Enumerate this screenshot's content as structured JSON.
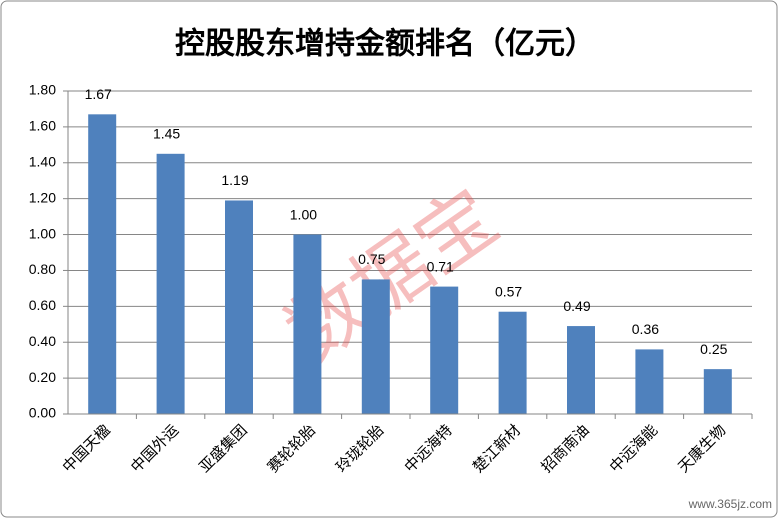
{
  "chart_data": {
    "type": "bar",
    "title": "控股股东增持金额排名（亿元）",
    "categories": [
      "中国天楹",
      "中国外运",
      "亚盛集团",
      "赛轮轮胎",
      "玲珑轮胎",
      "中远海特",
      "楚江新材",
      "招商南油",
      "中远海能",
      "天康生物"
    ],
    "values": [
      1.67,
      1.45,
      1.19,
      1.0,
      0.75,
      0.71,
      0.57,
      0.49,
      0.36,
      0.25
    ],
    "value_labels": [
      "1.67",
      "1.45",
      "1.19",
      "1.00",
      "0.75",
      "0.71",
      "0.57",
      "0.49",
      "0.36",
      "0.25"
    ],
    "color": "#4f81bd",
    "ylim": [
      0,
      1.8
    ],
    "yticks": [
      {
        "value": 0,
        "label": "0.00"
      },
      {
        "value": 0.2,
        "label": "0.20"
      },
      {
        "value": 0.4,
        "label": "0.40"
      },
      {
        "value": 0.6,
        "label": "0.60"
      },
      {
        "value": 0.8,
        "label": "0.80"
      },
      {
        "value": 1.0,
        "label": "1.00"
      },
      {
        "value": 1.2,
        "label": "1.20"
      },
      {
        "value": 1.4,
        "label": "1.40"
      },
      {
        "value": 1.6,
        "label": "1.60"
      },
      {
        "value": 1.8,
        "label": "1.80"
      }
    ],
    "grid": true,
    "watermark": "数据宝",
    "website": "www.365jz.com"
  }
}
